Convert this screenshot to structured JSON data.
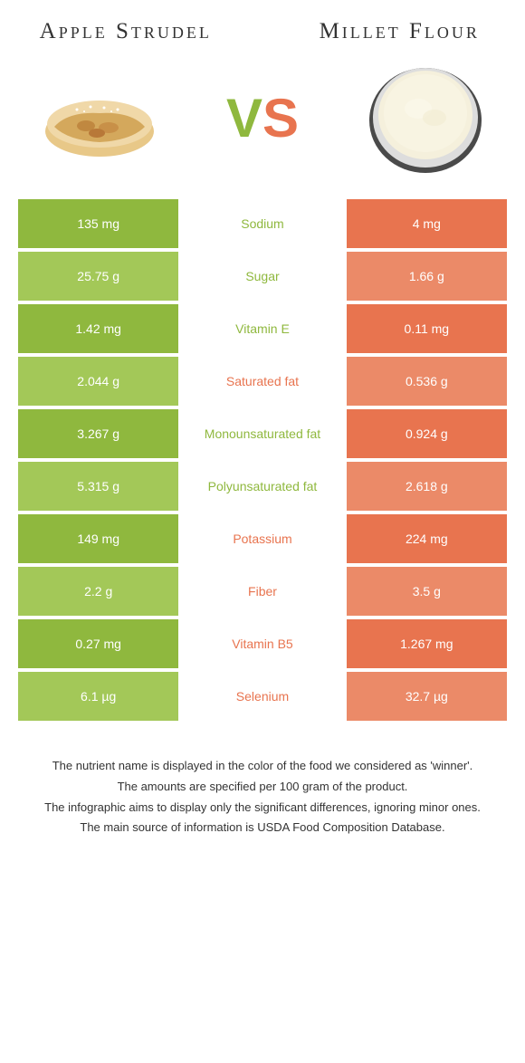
{
  "colors": {
    "green": "#8fb83e",
    "orange": "#e8744f",
    "lightGreen": "#a3c858",
    "lightOrange": "#eb8a68",
    "text_dark": "#333333",
    "white": "#ffffff"
  },
  "foods": {
    "left": {
      "name": "Apple Strudel"
    },
    "right": {
      "name": "Millet Flour"
    }
  },
  "vs": {
    "v": "V",
    "s": "S"
  },
  "rows": [
    {
      "left": "135 mg",
      "label": "Sodium",
      "right": "4 mg",
      "winner": "left",
      "shade": "dark"
    },
    {
      "left": "25.75 g",
      "label": "Sugar",
      "right": "1.66 g",
      "winner": "left",
      "shade": "light"
    },
    {
      "left": "1.42 mg",
      "label": "Vitamin E",
      "right": "0.11 mg",
      "winner": "left",
      "shade": "dark"
    },
    {
      "left": "2.044 g",
      "label": "Saturated fat",
      "right": "0.536 g",
      "winner": "right",
      "shade": "light"
    },
    {
      "left": "3.267 g",
      "label": "Monounsaturated fat",
      "right": "0.924 g",
      "winner": "left",
      "shade": "dark"
    },
    {
      "left": "5.315 g",
      "label": "Polyunsaturated fat",
      "right": "2.618 g",
      "winner": "left",
      "shade": "light"
    },
    {
      "left": "149 mg",
      "label": "Potassium",
      "right": "224 mg",
      "winner": "right",
      "shade": "dark"
    },
    {
      "left": "2.2 g",
      "label": "Fiber",
      "right": "3.5 g",
      "winner": "right",
      "shade": "light"
    },
    {
      "left": "0.27 mg",
      "label": "Vitamin B5",
      "right": "1.267 mg",
      "winner": "right",
      "shade": "dark"
    },
    {
      "left": "6.1 µg",
      "label": "Selenium",
      "right": "32.7 µg",
      "winner": "right",
      "shade": "light"
    }
  ],
  "footer": [
    "The nutrient name is displayed in the color of the food we considered as 'winner'.",
    "The amounts are specified per 100 gram of the product.",
    "The infographic aims to display only the significant differences, ignoring minor ones.",
    "The main source of information is USDA Food Composition Database."
  ]
}
